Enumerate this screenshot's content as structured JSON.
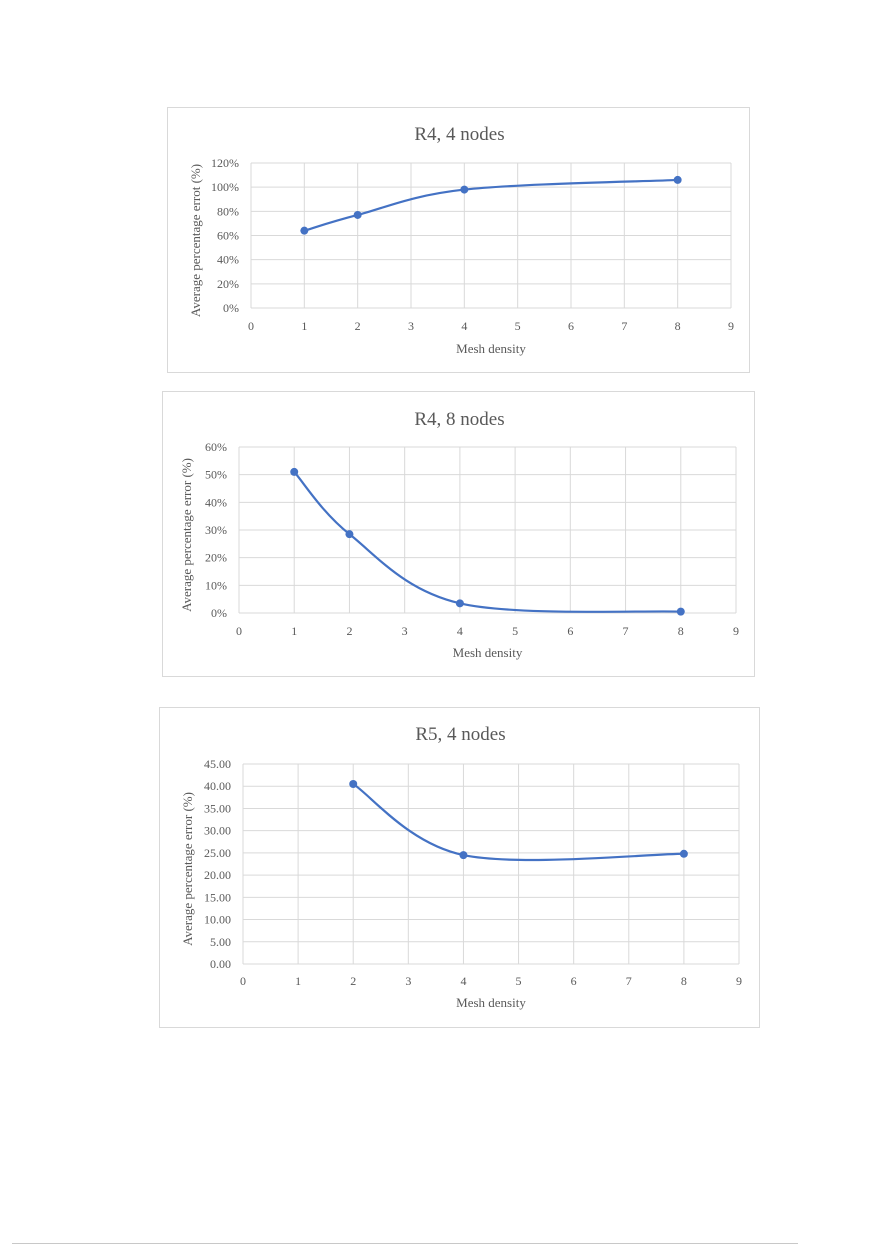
{
  "chart_data": [
    {
      "type": "line",
      "title": "R4, 4 nodes",
      "xlabel": "Mesh density",
      "ylabel": "Average percentage errot (%)",
      "x_ticks": [
        "0",
        "1",
        "2",
        "3",
        "4",
        "5",
        "6",
        "7",
        "8",
        "9"
      ],
      "y_ticks": [
        "0%",
        "20%",
        "40%",
        "60%",
        "80%",
        "100%",
        "120%"
      ],
      "xlim": [
        0,
        9
      ],
      "ylim": [
        0,
        120
      ],
      "grid": true,
      "smooth": true,
      "series": [
        {
          "x": [
            1,
            2,
            4,
            8
          ],
          "y": [
            64,
            77,
            98,
            106
          ]
        }
      ]
    },
    {
      "type": "line",
      "title": "R4, 8 nodes",
      "xlabel": "Mesh density",
      "ylabel": "Average percentage error (%)",
      "x_ticks": [
        "0",
        "1",
        "2",
        "3",
        "4",
        "5",
        "6",
        "7",
        "8",
        "9"
      ],
      "y_ticks": [
        "0%",
        "10%",
        "20%",
        "30%",
        "40%",
        "50%",
        "60%"
      ],
      "xlim": [
        0,
        9
      ],
      "ylim": [
        0,
        60
      ],
      "grid": true,
      "smooth": true,
      "series": [
        {
          "x": [
            1,
            2,
            4,
            8
          ],
          "y": [
            51,
            28.5,
            3.5,
            0.5
          ]
        }
      ]
    },
    {
      "type": "line",
      "title": "R5, 4 nodes",
      "xlabel": "Mesh density",
      "ylabel": "Average percentage error (%)",
      "x_ticks": [
        "0",
        "1",
        "2",
        "3",
        "4",
        "5",
        "6",
        "7",
        "8",
        "9"
      ],
      "y_ticks": [
        "0.00",
        "5.00",
        "10.00",
        "15.00",
        "20.00",
        "25.00",
        "30.00",
        "35.00",
        "40.00",
        "45.00"
      ],
      "xlim": [
        0,
        9
      ],
      "ylim": [
        0,
        45
      ],
      "grid": true,
      "smooth": true,
      "series": [
        {
          "x": [
            2,
            4,
            8
          ],
          "y": [
            40.5,
            24.5,
            24.8
          ]
        }
      ]
    }
  ],
  "colors": {
    "series": "#4472c4",
    "grid": "#d9d9d9",
    "text": "#595959",
    "border": "#d9d9d9"
  }
}
